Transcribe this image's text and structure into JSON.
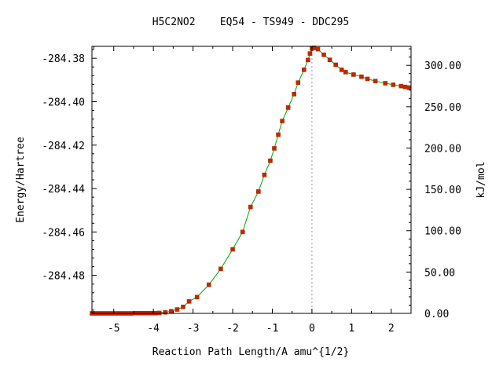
{
  "chart_data": {
    "type": "line",
    "title": "H5C2NO2    EQ54 - TS949 - DDC295",
    "xlabel": "Reaction Path Length/A amu^{1/2}",
    "ylabel": "Energy/Hartree",
    "y2label": "kJ/mol",
    "xlim": [
      -5.55,
      2.5
    ],
    "ylim": [
      -284.4975,
      -284.3745
    ],
    "y2lim": [
      0.0,
      323.0
    ],
    "x_ticks": [
      -5,
      -4,
      -3,
      -2,
      -1,
      0,
      1,
      2
    ],
    "x_tick_labels": [
      "-5",
      "-4",
      "-3",
      "-2",
      "-1",
      "0",
      "1",
      "2"
    ],
    "y_ticks": [
      -284.38,
      -284.4,
      -284.42,
      -284.44,
      -284.46,
      -284.48
    ],
    "y_tick_labels": [
      "-284.38",
      "-284.40",
      "-284.42",
      "-284.44",
      "-284.46",
      "-284.48"
    ],
    "y2_ticks": [
      0,
      50,
      100,
      150,
      200,
      250,
      300
    ],
    "y2_tick_labels": [
      "0.00",
      "50.00",
      "100.00",
      "150.00",
      "200.00",
      "250.00",
      "300.00"
    ],
    "ts_marker_x": 0.0,
    "line_color": "#00aa00",
    "marker_color": "#cc2200",
    "ts_line_color": "#999999",
    "series": [
      {
        "x": [
          -5.55,
          -5.45,
          -5.35,
          -5.25,
          -5.15,
          -5.05,
          -4.95,
          -4.85,
          -4.75,
          -4.65,
          -4.55,
          -4.45,
          -4.35,
          -4.25,
          -4.15,
          -4.05,
          -3.95,
          -3.85,
          -3.7,
          -3.55,
          -3.4,
          -3.25,
          -3.1,
          -2.9,
          -2.6,
          -2.3,
          -2.0,
          -1.75,
          -1.55,
          -1.35,
          -1.2,
          -1.05,
          -0.95,
          -0.85,
          -0.75,
          -0.6,
          -0.45,
          -0.35,
          -0.2,
          -0.1,
          -0.05,
          0.0,
          0.05,
          0.15,
          0.3,
          0.45,
          0.6,
          0.75,
          0.85,
          1.05,
          1.25,
          1.4,
          1.6,
          1.85,
          2.05,
          2.25,
          2.35,
          2.45
        ],
        "y": [
          -284.4975,
          -284.4975,
          -284.4975,
          -284.4975,
          -284.4975,
          -284.4975,
          -284.4975,
          -284.4975,
          -284.4975,
          -284.4975,
          -284.4975,
          -284.4974,
          -284.4974,
          -284.4974,
          -284.4974,
          -284.4974,
          -284.4974,
          -284.4973,
          -284.497,
          -284.4965,
          -284.4957,
          -284.4945,
          -284.492,
          -284.49,
          -284.4843,
          -284.477,
          -284.468,
          -284.46,
          -284.4485,
          -284.4414,
          -284.4337,
          -284.4272,
          -284.4215,
          -284.4152,
          -284.4089,
          -284.4027,
          -284.3965,
          -284.3912,
          -284.3853,
          -284.3808,
          -284.3778,
          -284.3755,
          -284.3752,
          -284.3758,
          -284.3784,
          -284.3807,
          -284.383,
          -284.3853,
          -284.3864,
          -284.3875,
          -284.3885,
          -284.3895,
          -284.3905,
          -284.3915,
          -284.3922,
          -284.3928,
          -284.3932,
          -284.3935
        ]
      }
    ]
  }
}
